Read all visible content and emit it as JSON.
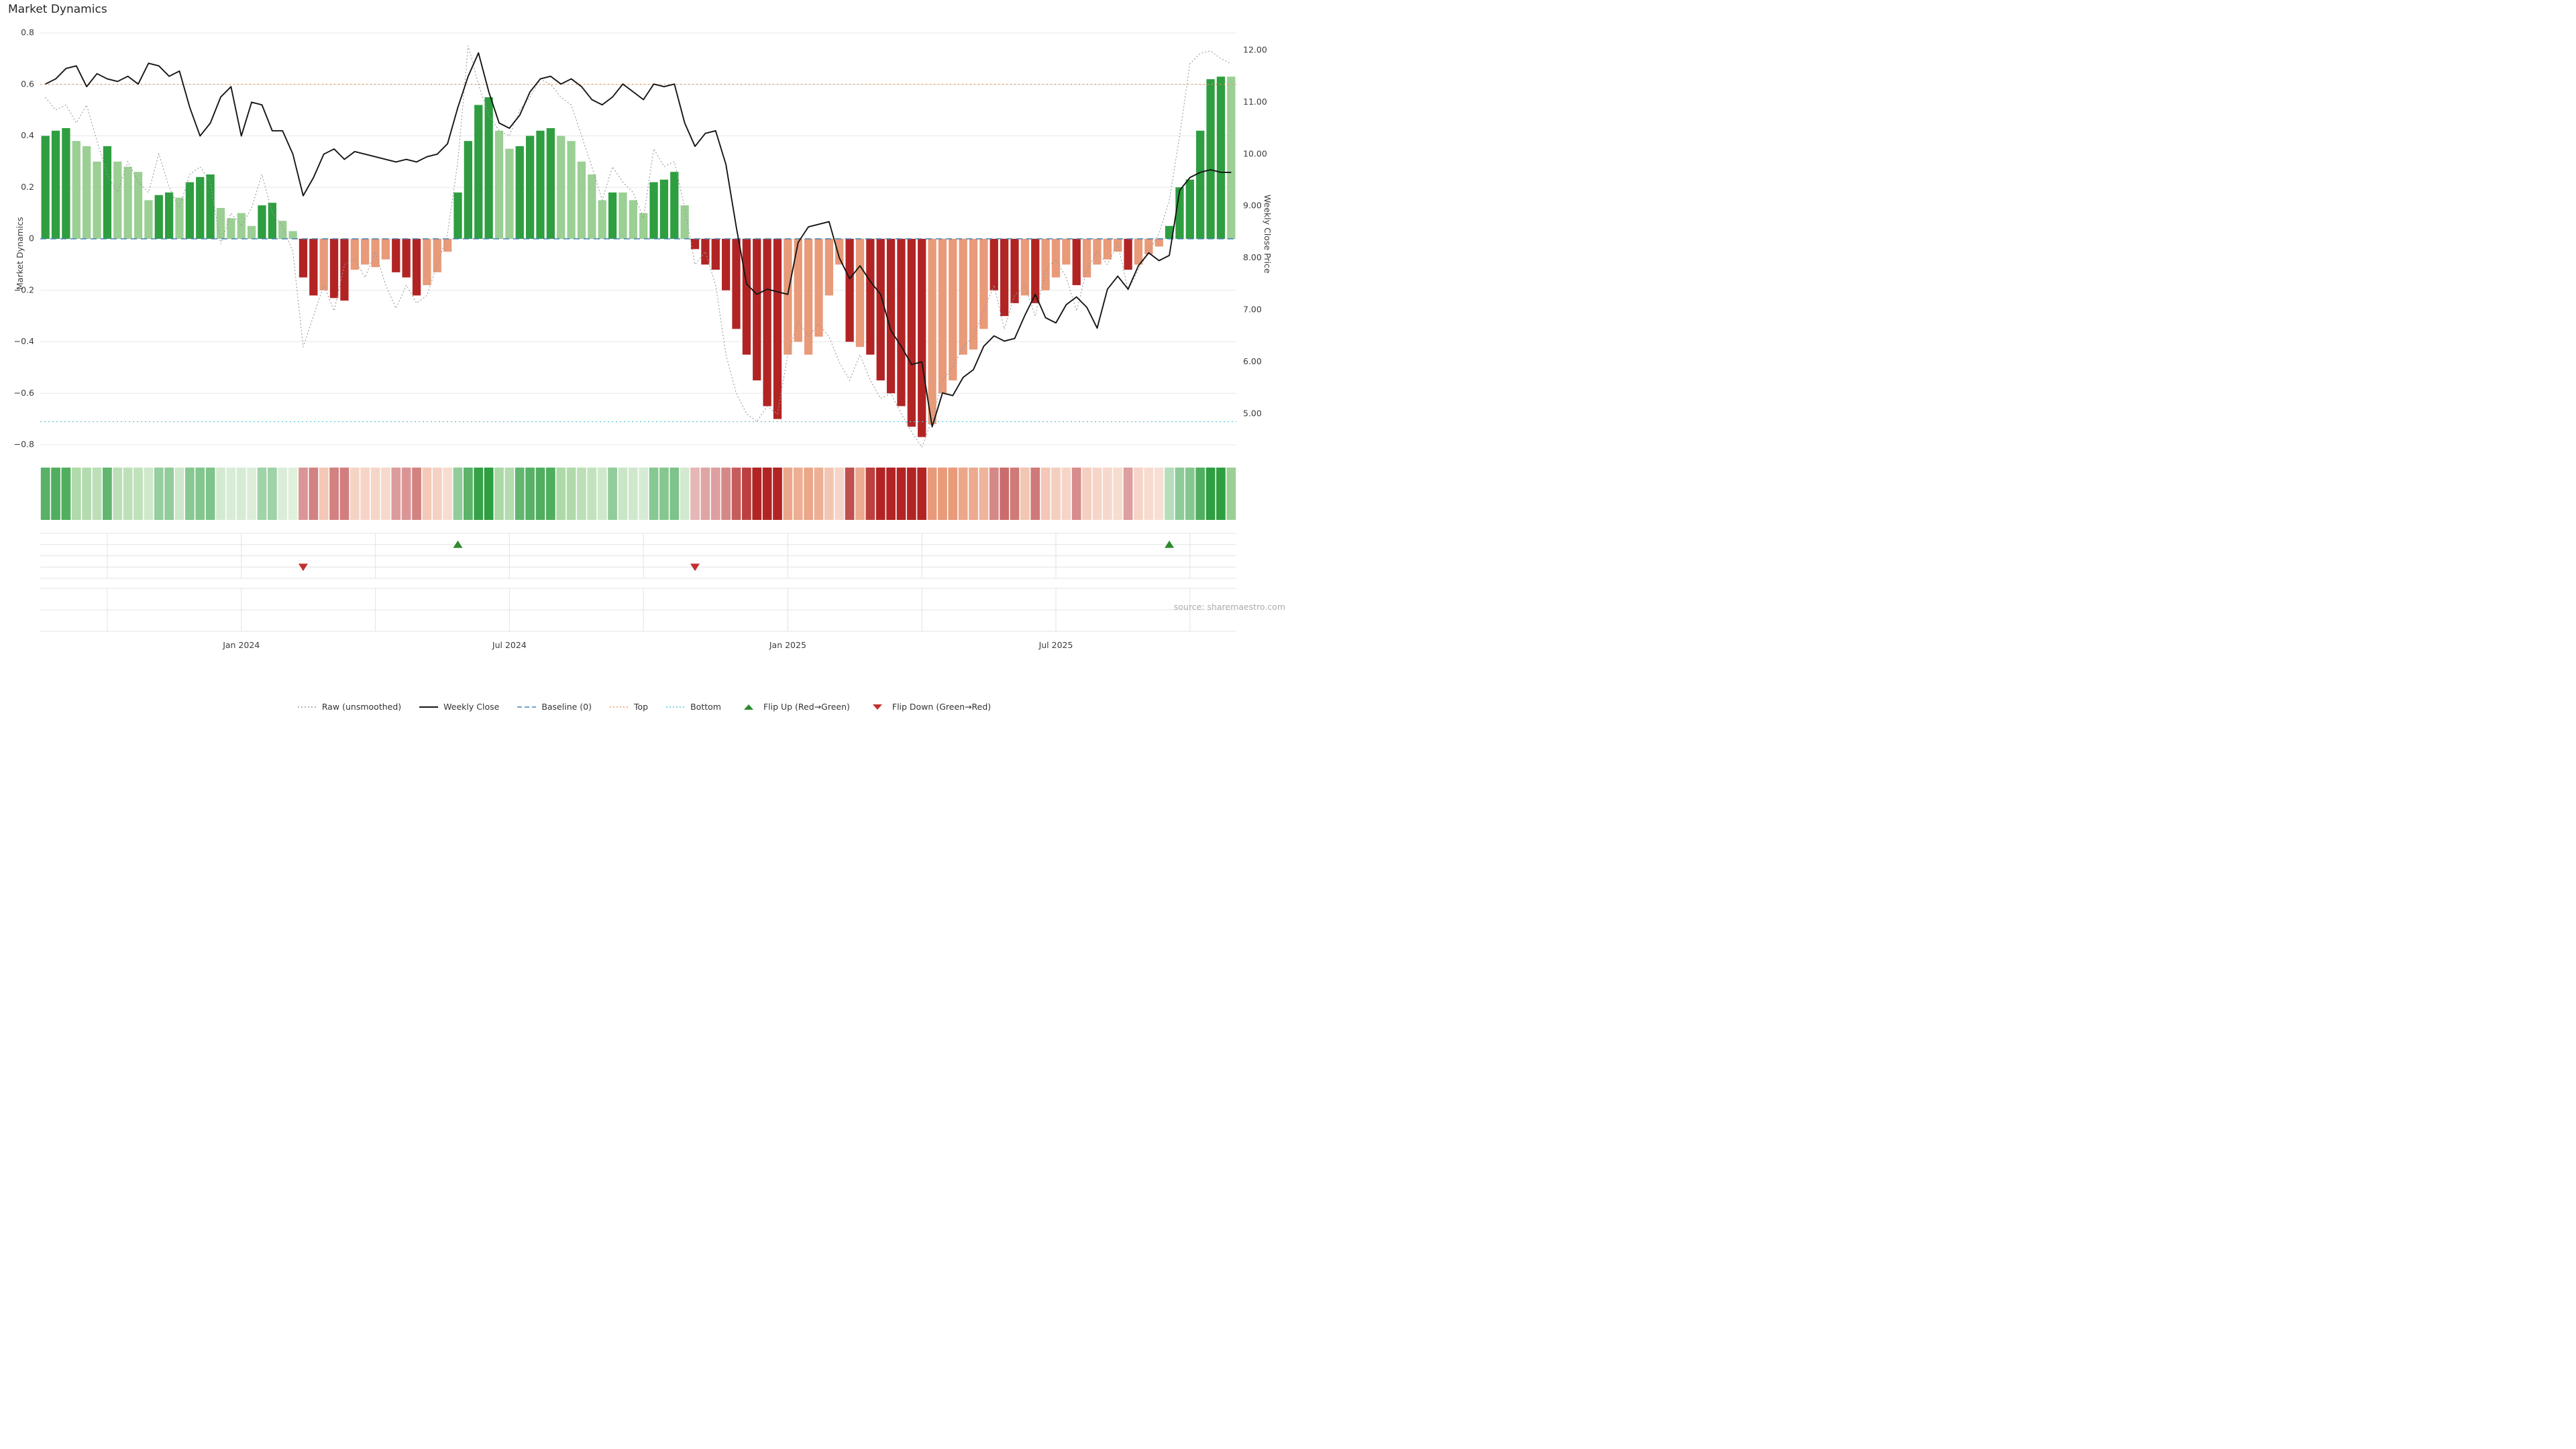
{
  "title": "Market Dynamics",
  "source": "source: sharemaestro.com",
  "colors": {
    "bar_dark_green": "#2e9e40",
    "bar_light_green": "#9bcf94",
    "bar_dark_red": "#b22424",
    "bar_light_red": "#e89a79",
    "weekly_close": "#151515",
    "raw": "#999999",
    "baseline": "#4682b4",
    "top": "#e8995f",
    "bottom": "#55c6da",
    "grid": "#e7e7e7",
    "panel_grid": "#e3e3e3",
    "flip_up": "#2e8b2e",
    "flip_down": "#c23030",
    "text": "#3c3c3c"
  },
  "chart_data": {
    "type": "bar",
    "title": "Market Dynamics",
    "x_unit": "week",
    "n_weeks": 116,
    "x_ticks": [
      {
        "week": 19,
        "label": "Jan 2024"
      },
      {
        "week": 45,
        "label": "Jul 2024"
      },
      {
        "week": 72,
        "label": "Jan 2025"
      },
      {
        "week": 98,
        "label": "Jul 2025"
      }
    ],
    "minor_grid_weeks": [
      6,
      19,
      32,
      45,
      58,
      72,
      85,
      98,
      111
    ],
    "left_axis": {
      "label": "Market Dynamics",
      "range": [
        -0.8,
        0.8
      ],
      "ticks": [
        {
          "v": 0.8,
          "label": "0.8"
        },
        {
          "v": 0.6,
          "label": "0.6"
        },
        {
          "v": 0.4,
          "label": "0.4"
        },
        {
          "v": 0.2,
          "label": "0.2"
        },
        {
          "v": 0,
          "label": "0"
        },
        {
          "v": -0.2,
          "label": "−0.2"
        },
        {
          "v": -0.4,
          "label": "−0.4"
        },
        {
          "v": -0.6,
          "label": "−0.6"
        },
        {
          "v": -0.8,
          "label": "−0.8"
        }
      ]
    },
    "right_axis": {
      "label": "Weekly Close Price",
      "range": [
        4.5,
        12.3
      ],
      "ticks": [
        {
          "v": 12,
          "label": "12.00"
        },
        {
          "v": 11,
          "label": "11.00"
        },
        {
          "v": 10,
          "label": "10.00"
        },
        {
          "v": 9,
          "label": "9.00"
        },
        {
          "v": 8,
          "label": "8.00"
        },
        {
          "v": 7,
          "label": "7.00"
        },
        {
          "v": 6,
          "label": "6.00"
        },
        {
          "v": 5,
          "label": "5.00"
        }
      ]
    },
    "reference_lines": {
      "baseline": 0,
      "top": 0.6,
      "bottom": -0.71
    },
    "series": {
      "dynamics_bars": [
        0.4,
        0.42,
        0.43,
        0.38,
        0.36,
        0.3,
        0.36,
        0.3,
        0.28,
        0.26,
        0.15,
        0.17,
        0.18,
        0.16,
        0.22,
        0.24,
        0.25,
        0.12,
        0.08,
        0.1,
        0.05,
        0.13,
        0.14,
        0.07,
        0.03,
        -0.15,
        -0.22,
        -0.2,
        -0.23,
        -0.24,
        -0.12,
        -0.1,
        -0.11,
        -0.08,
        -0.13,
        -0.15,
        -0.22,
        -0.18,
        -0.13,
        -0.05,
        0.18,
        0.38,
        0.52,
        0.55,
        0.42,
        0.35,
        0.36,
        0.4,
        0.42,
        0.43,
        0.4,
        0.38,
        0.3,
        0.25,
        0.15,
        0.18,
        0.18,
        0.15,
        0.1,
        0.22,
        0.23,
        0.26,
        0.13,
        -0.04,
        -0.1,
        -0.12,
        -0.2,
        -0.35,
        -0.45,
        -0.55,
        -0.65,
        -0.7,
        -0.45,
        -0.4,
        -0.45,
        -0.38,
        -0.22,
        -0.1,
        -0.4,
        -0.42,
        -0.45,
        -0.55,
        -0.6,
        -0.65,
        -0.73,
        -0.77,
        -0.72,
        -0.6,
        -0.55,
        -0.45,
        -0.43,
        -0.35,
        -0.2,
        -0.3,
        -0.25,
        -0.22,
        -0.25,
        -0.2,
        -0.15,
        -0.1,
        -0.18,
        -0.15,
        -0.1,
        -0.08,
        -0.05,
        -0.12,
        -0.1,
        -0.06,
        -0.03,
        0.05,
        0.2,
        0.23,
        0.42,
        0.62,
        0.63,
        0.63
      ],
      "raw_unsmoothed": [
        0.55,
        0.5,
        0.52,
        0.45,
        0.52,
        0.38,
        0.25,
        0.18,
        0.3,
        0.22,
        0.18,
        0.33,
        0.2,
        0.12,
        0.25,
        0.28,
        0.22,
        -0.02,
        0.1,
        0.05,
        0.12,
        0.25,
        0.1,
        0.05,
        -0.05,
        -0.42,
        -0.3,
        -0.18,
        -0.28,
        -0.1,
        -0.08,
        -0.15,
        -0.05,
        -0.18,
        -0.27,
        -0.18,
        -0.25,
        -0.22,
        -0.1,
        0.02,
        0.3,
        0.75,
        0.6,
        0.48,
        0.42,
        0.4,
        0.5,
        0.55,
        0.62,
        0.6,
        0.55,
        0.52,
        0.4,
        0.28,
        0.15,
        0.28,
        0.22,
        0.18,
        0.08,
        0.35,
        0.28,
        0.3,
        0.12,
        -0.1,
        -0.05,
        -0.18,
        -0.45,
        -0.6,
        -0.68,
        -0.71,
        -0.65,
        -0.68,
        -0.45,
        -0.32,
        -0.38,
        -0.33,
        -0.38,
        -0.48,
        -0.55,
        -0.45,
        -0.55,
        -0.62,
        -0.6,
        -0.68,
        -0.75,
        -0.81,
        -0.7,
        -0.55,
        -0.5,
        -0.42,
        -0.38,
        -0.28,
        -0.18,
        -0.35,
        -0.22,
        -0.18,
        -0.3,
        -0.12,
        -0.08,
        -0.15,
        -0.28,
        -0.12,
        -0.05,
        -0.1,
        -0.02,
        -0.2,
        -0.12,
        -0.05,
        0.02,
        0.15,
        0.4,
        0.68,
        0.72,
        0.73,
        0.7,
        0.68
      ],
      "weekly_close": [
        11.35,
        11.45,
        11.65,
        11.7,
        11.3,
        11.55,
        11.45,
        11.4,
        11.5,
        11.35,
        11.75,
        11.7,
        11.5,
        11.6,
        10.9,
        10.35,
        10.6,
        11.1,
        11.3,
        10.35,
        11.0,
        10.95,
        10.45,
        10.45,
        10.0,
        9.2,
        9.55,
        10.0,
        10.1,
        9.9,
        10.05,
        10.0,
        9.95,
        9.9,
        9.85,
        9.9,
        9.85,
        9.95,
        10.0,
        10.2,
        10.9,
        11.5,
        11.95,
        11.2,
        10.6,
        10.5,
        10.75,
        11.2,
        11.45,
        11.5,
        11.35,
        11.45,
        11.3,
        11.05,
        10.95,
        11.1,
        11.35,
        11.2,
        11.05,
        11.35,
        11.3,
        11.35,
        10.6,
        10.15,
        10.4,
        10.45,
        9.8,
        8.6,
        7.5,
        7.3,
        7.4,
        7.35,
        7.3,
        8.3,
        8.6,
        8.65,
        8.7,
        8.0,
        7.6,
        7.85,
        7.55,
        7.3,
        6.6,
        6.3,
        5.95,
        6.0,
        4.75,
        5.4,
        5.35,
        5.7,
        5.85,
        6.3,
        6.5,
        6.4,
        6.45,
        6.9,
        7.3,
        6.85,
        6.75,
        7.1,
        7.25,
        7.05,
        6.65,
        7.4,
        7.65,
        7.4,
        7.85,
        8.1,
        7.95,
        8.05,
        9.3,
        9.55,
        9.65,
        9.7,
        9.65,
        9.65
      ]
    },
    "bar_color_keys": [
      "g",
      "g",
      "g",
      "gl",
      "gl",
      "gl",
      "g",
      "gl",
      "gl",
      "gl",
      "gl",
      "g",
      "g",
      "gl",
      "g",
      "g",
      "g",
      "gl",
      "gl",
      "gl",
      "gl",
      "g",
      "g",
      "gl",
      "gl",
      "r",
      "r",
      "rl",
      "r",
      "r",
      "rl",
      "rl",
      "rl",
      "rl",
      "r",
      "r",
      "r",
      "rl",
      "rl",
      "rl",
      "g",
      "g",
      "g",
      "g",
      "gl",
      "gl",
      "g",
      "g",
      "g",
      "g",
      "gl",
      "gl",
      "gl",
      "gl",
      "gl",
      "g",
      "gl",
      "gl",
      "gl",
      "g",
      "g",
      "g",
      "gl",
      "r",
      "r",
      "r",
      "r",
      "r",
      "r",
      "r",
      "r",
      "r",
      "rl",
      "rl",
      "rl",
      "rl",
      "rl",
      "rl",
      "r",
      "rl",
      "r",
      "r",
      "r",
      "r",
      "r",
      "r",
      "rl",
      "rl",
      "rl",
      "rl",
      "rl",
      "rl",
      "r",
      "r",
      "r",
      "rl",
      "r",
      "rl",
      "rl",
      "rl",
      "r",
      "rl",
      "rl",
      "rl",
      "rl",
      "r",
      "rl",
      "rl",
      "rl",
      "g",
      "g",
      "g",
      "g",
      "g",
      "g",
      "gl"
    ],
    "markers": {
      "flip_up_weeks": [
        40,
        109
      ],
      "flip_down_weeks": [
        25,
        63
      ]
    }
  },
  "legend": [
    {
      "label": "Raw (unsmoothed)",
      "swatch": "dotted",
      "color_ref": "raw"
    },
    {
      "label": "Weekly Close",
      "swatch": "solid",
      "color_ref": "weekly_close"
    },
    {
      "label": "Baseline (0)",
      "swatch": "dashed",
      "color_ref": "baseline"
    },
    {
      "label": "Top",
      "swatch": "dotted",
      "color_ref": "top"
    },
    {
      "label": "Bottom",
      "swatch": "dotted",
      "color_ref": "bottom"
    },
    {
      "label": "Flip Up (Red→Green)",
      "swatch": "triangle-up",
      "color_ref": "flip_up"
    },
    {
      "label": "Flip Down (Green→Red)",
      "swatch": "triangle-down",
      "color_ref": "flip_down"
    }
  ]
}
